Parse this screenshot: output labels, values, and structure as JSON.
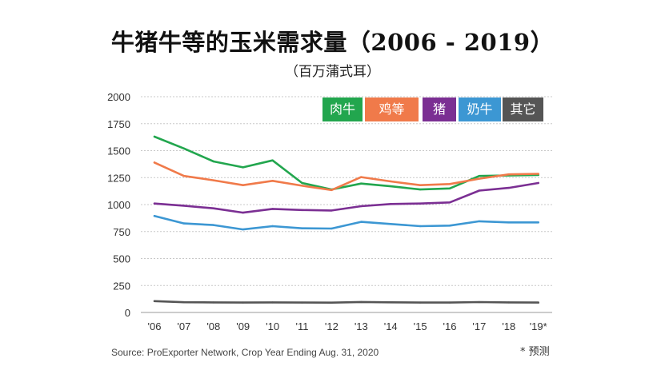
{
  "title": "牛猪牛等的玉米需求量（2006 - 2019）",
  "subtitle": "（百万蒲式耳）",
  "source": "Source: ProExporter Network, Crop Year Ending Aug. 31, 2020",
  "footnote": "* 预测",
  "chart_data": {
    "type": "line",
    "title": "牛猪牛等的玉米需求量（2006 - 2019）",
    "subtitle": "（百万蒲式耳）",
    "xlabel": "",
    "ylabel": "",
    "ylim": [
      0,
      2000
    ],
    "yticks": [
      "2000",
      "1750",
      "1500",
      "1250",
      "1000",
      "750",
      "500",
      "250",
      "0"
    ],
    "ytick_values": [
      2000,
      1750,
      1500,
      1250,
      1000,
      750,
      500,
      250,
      0
    ],
    "categories": [
      "'06",
      "'07",
      "'08",
      "'09",
      "'10",
      "'11",
      "'12",
      "'13",
      "'14",
      "'15",
      "'16",
      "'17",
      "'18",
      "'19*"
    ],
    "legend_position": "top-right",
    "series": [
      {
        "name": "肉牛",
        "color": "#22a64e",
        "values": [
          1630,
          1520,
          1400,
          1345,
          1410,
          1200,
          1140,
          1195,
          1170,
          1140,
          1150,
          1265,
          1270,
          1275
        ]
      },
      {
        "name": "鸡等",
        "color": "#f07a4a",
        "values": [
          1390,
          1265,
          1225,
          1180,
          1220,
          1175,
          1135,
          1255,
          1215,
          1180,
          1190,
          1240,
          1280,
          1285
        ]
      },
      {
        "name": "猪",
        "color": "#7b2f93",
        "values": [
          1010,
          990,
          965,
          925,
          960,
          950,
          945,
          985,
          1005,
          1010,
          1020,
          1130,
          1155,
          1200
        ]
      },
      {
        "name": "奶牛",
        "color": "#3c97d3",
        "values": [
          895,
          825,
          810,
          770,
          800,
          780,
          778,
          840,
          820,
          800,
          805,
          845,
          835,
          835
        ]
      },
      {
        "name": "其它",
        "color": "#555555",
        "values": [
          105,
          95,
          93,
          92,
          93,
          92,
          91,
          97,
          94,
          92,
          92,
          96,
          93,
          92
        ]
      }
    ]
  }
}
